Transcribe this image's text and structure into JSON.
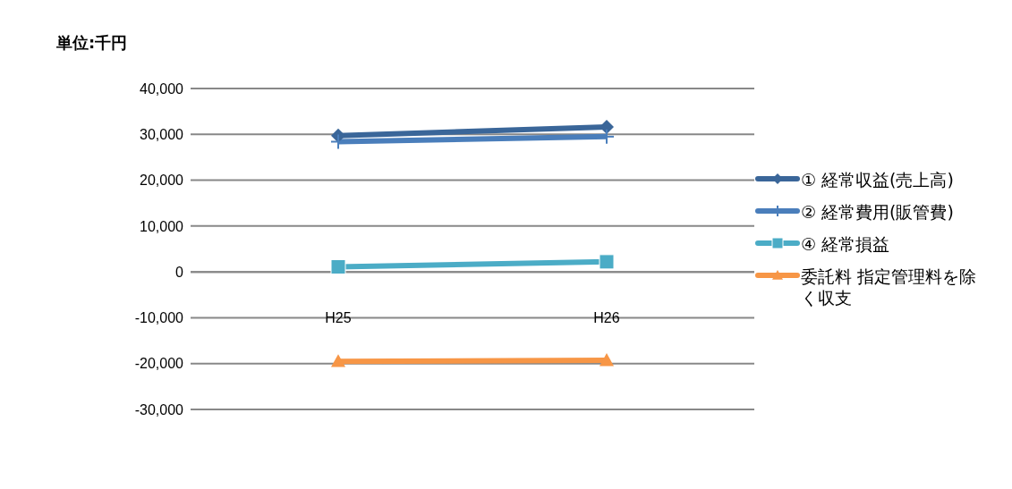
{
  "chart_data": {
    "type": "line",
    "ylabel": "単位:千円",
    "categories": [
      "H25",
      "H26"
    ],
    "series": [
      {
        "name": "① 経常収益(売上高)",
        "color": "#3a6699",
        "marker": "diamond",
        "values": [
          29700,
          31600
        ]
      },
      {
        "name": "② 経常費用(販管費)",
        "color": "#4a7ebb",
        "marker": "cross",
        "values": [
          28400,
          29500
        ]
      },
      {
        "name": "④ 経常損益",
        "color": "#4bacc6",
        "marker": "square",
        "values": [
          1100,
          2200
        ]
      },
      {
        "name": "委託料 指定管理料を除く収支",
        "color": "#f79646",
        "marker": "triangle",
        "values": [
          -19500,
          -19300
        ]
      }
    ],
    "ylim": [
      -30000,
      40000
    ],
    "yticks": [
      {
        "value": -30000,
        "label": "-30,000"
      },
      {
        "value": -20000,
        "label": "-20,000"
      },
      {
        "value": -10000,
        "label": "-10,000"
      },
      0,
      {
        "value": 10000,
        "label": "10,000"
      },
      {
        "value": 20000,
        "label": "20,000"
      },
      {
        "value": 30000,
        "label": "30,000"
      },
      {
        "value": 40000,
        "label": "40,000"
      }
    ],
    "grid": "y",
    "legend": "right"
  }
}
